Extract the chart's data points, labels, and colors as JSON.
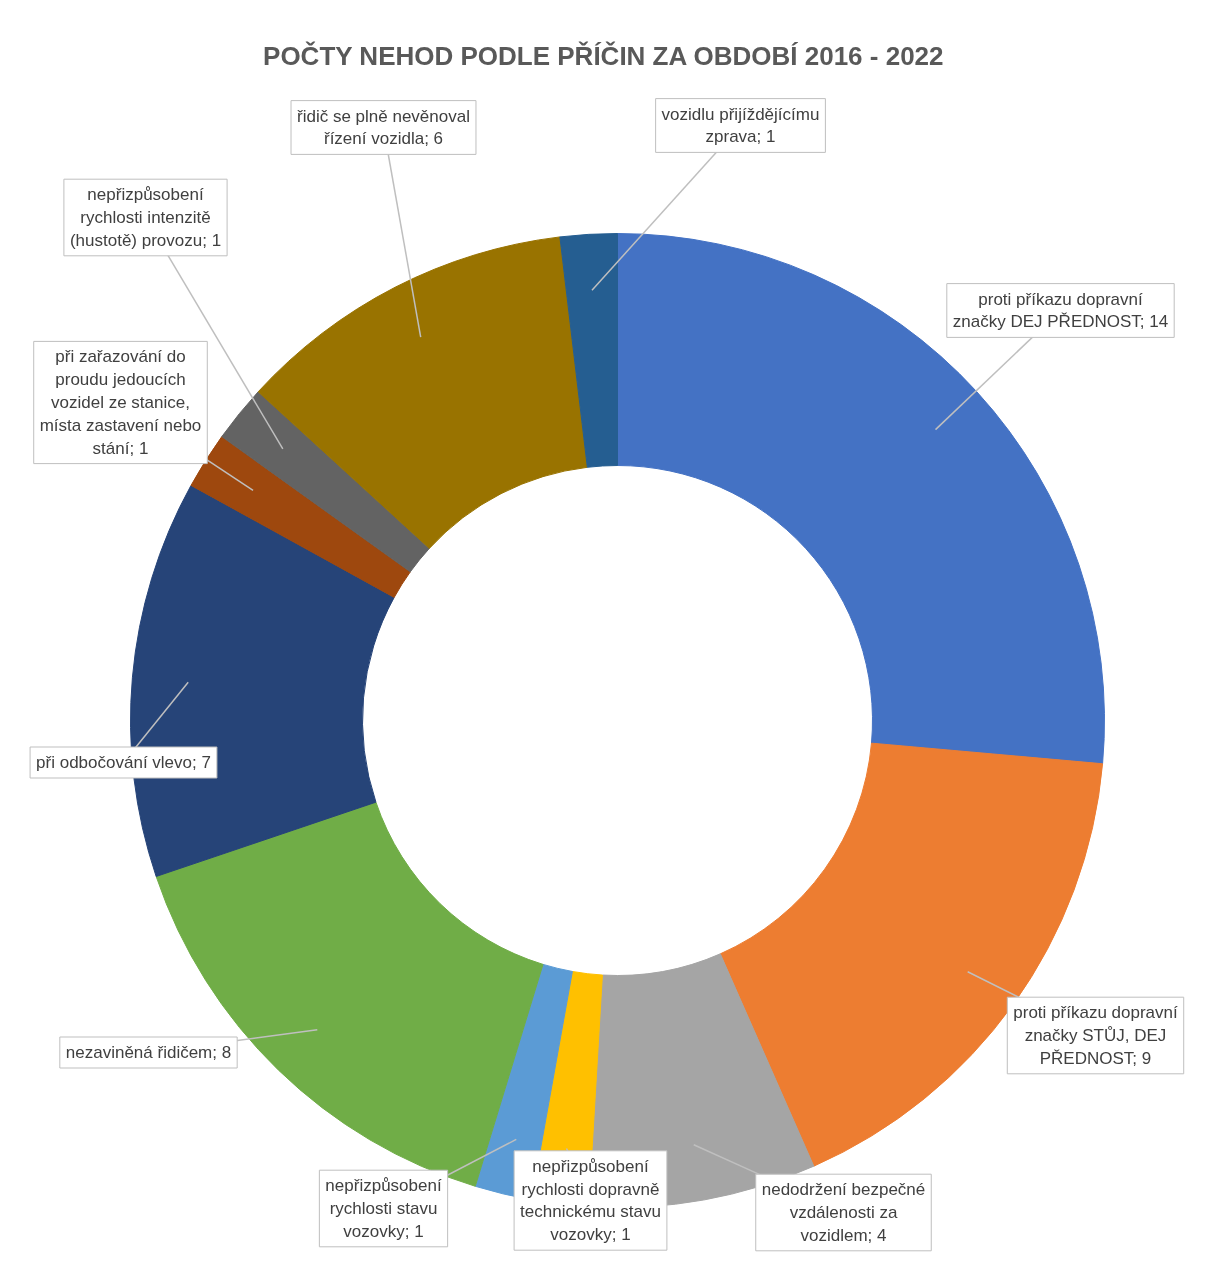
{
  "chart_data": {
    "type": "donut",
    "title": "POČTY NEHOD PODLE PŘÍČIN ZA OBDOBÍ 2016 - 2022",
    "categories": [
      "proti příkazu dopravní značky DEJ PŘEDNOST",
      "proti příkazu dopravní značky STŮJ, DEJ PŘEDNOST",
      "nedodržení bezpečné vzdálenosti za vozidlem",
      "nepřizpůsobení rychlosti dopravně technickému stavu vozovky",
      "nepřizpůsobení rychlosti stavu vozovky",
      "nezaviněná řidičem",
      "při odbočování vlevo",
      "při zařazování do proudu jedoucích vozidel ze stanice, místa zastavení nebo stání",
      "nepřizpůsobení rychlosti intenzitě (hustotě) provozu",
      "řidič se plně nevěnoval řízení vozidla",
      "vozidlu přijíždějícímu zprava"
    ],
    "values": [
      14,
      9,
      4,
      1,
      1,
      8,
      7,
      1,
      1,
      6,
      1
    ],
    "value_labels": [
      "14",
      "9",
      "4",
      "1",
      "1",
      "8",
      "7",
      "1",
      "1",
      "6",
      "1"
    ],
    "colors": [
      "#4472c4",
      "#ed7d31",
      "#a5a5a5",
      "#ffc000",
      "#5b9bd5",
      "#70ad47",
      "#264478",
      "#9e480e",
      "#636363",
      "#997300",
      "#255e91"
    ]
  }
}
